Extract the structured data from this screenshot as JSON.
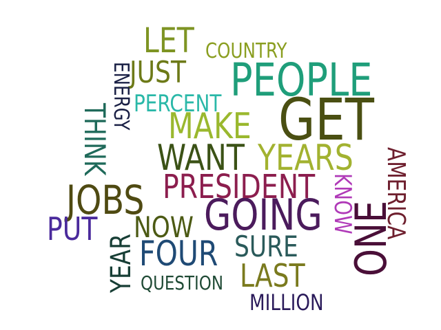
{
  "words": [
    {
      "text": "GET",
      "color": "#4a4f12"
    },
    {
      "text": "PEOPLE",
      "color": "#1f9e7a"
    },
    {
      "text": "GOING",
      "color": "#4b1b5c"
    },
    {
      "text": "JOBS",
      "color": "#4f4a12"
    },
    {
      "text": "WANT",
      "color": "#3b5216"
    },
    {
      "text": "MAKE",
      "color": "#9ab82e"
    },
    {
      "text": "YEARS",
      "color": "#a2b230"
    },
    {
      "text": "PRESIDENT",
      "color": "#8c1e4e"
    },
    {
      "text": "ONE",
      "color": "#4a0f38"
    },
    {
      "text": "FOUR",
      "color": "#1f4a75"
    },
    {
      "text": "LET",
      "color": "#7e9423"
    },
    {
      "text": "JUST",
      "color": "#6d7a18"
    },
    {
      "text": "NOW",
      "color": "#4c5a14"
    },
    {
      "text": "PUT",
      "color": "#4a2a9c"
    },
    {
      "text": "LAST",
      "color": "#7a7a1e"
    },
    {
      "text": "SURE",
      "color": "#2a5a5a"
    },
    {
      "text": "THINK",
      "color": "#1f6a5a"
    },
    {
      "text": "YEAR",
      "color": "#173e35"
    },
    {
      "text": "AMERICA",
      "color": "#6e1f2e"
    },
    {
      "text": "KNOW",
      "color": "#b03ab8"
    },
    {
      "text": "PERCENT",
      "color": "#2ab8a8"
    },
    {
      "text": "COUNTRY",
      "color": "#8a9e20"
    },
    {
      "text": "ENERGY",
      "color": "#1a2045"
    },
    {
      "text": "QUESTION",
      "color": "#1f4a35"
    },
    {
      "text": "MILLION",
      "color": "#2a1a5a"
    }
  ]
}
